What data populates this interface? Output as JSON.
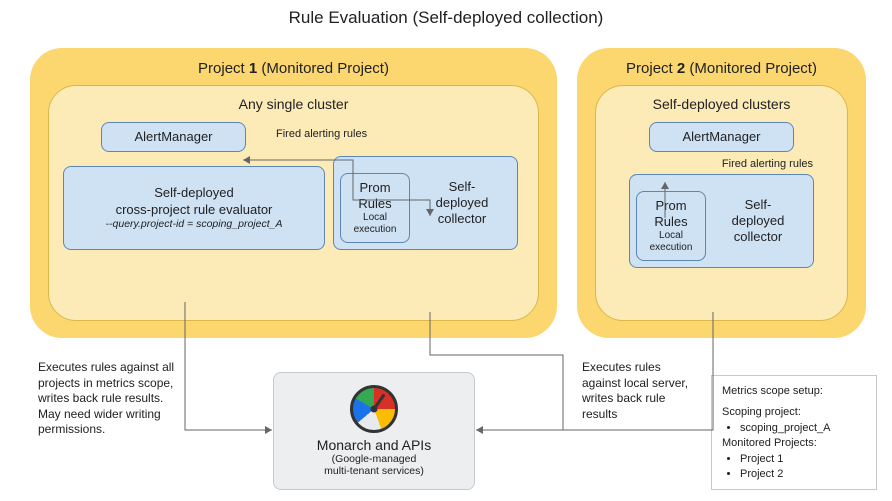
{
  "title": "Rule Evaluation (Self-deployed collection)",
  "proj1": {
    "title": "Project 1 (Monitored Project)",
    "cluster": "Any single cluster",
    "alert": "AlertManager",
    "fired": "Fired alerting rules",
    "eval_l1": "Self-deployed",
    "eval_l2": "cross-project rule evaluator",
    "eval_sub": "--query.project-id = scoping_project_A",
    "prom_l1": "Prom",
    "prom_l2": "Rules",
    "prom_sub1": "Local",
    "prom_sub2": "execution",
    "coll_l1": "Self-",
    "coll_l2": "deployed",
    "coll_l3": "collector",
    "note": "Executes rules against all projects in metrics scope, writes back rule results. May need wider writing permissions."
  },
  "proj2": {
    "title": "Project 2 (Monitored Project)",
    "cluster": "Self-deployed clusters",
    "alert": "AlertManager",
    "fired": "Fired alerting rules",
    "prom_l1": "Prom",
    "prom_l2": "Rules",
    "prom_sub1": "Local",
    "prom_sub2": "execution",
    "coll_l1": "Self-",
    "coll_l2": "deployed",
    "coll_l3": "collector",
    "note": "Executes rules against local server, writes back rule results"
  },
  "monarch": {
    "l1": "Monarch and APIs",
    "l2": "(Google-managed",
    "l3": "multi-tenant services)"
  },
  "scope": {
    "heading": "Metrics scope setup:",
    "scoping_h": "Scoping project:",
    "scoping_v": "scoping_project_A",
    "mon_h": "Monitored Projects:",
    "p1": "Project 1",
    "p2": "Project 2"
  },
  "colors": {
    "proj": "#fcd770",
    "cluster": "#fdebb7",
    "box": "#cfe2f3",
    "box_border": "#5b86b5"
  }
}
